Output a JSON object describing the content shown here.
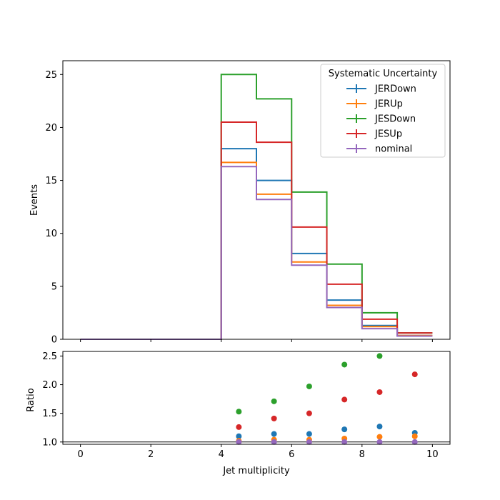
{
  "chart_data": {
    "type": "step-histogram-with-ratio",
    "xlabel": "Jet multiplicity",
    "ylabel_top": "Events",
    "ylabel_bottom": "Ratio",
    "legend_title": "Systematic Uncertainty",
    "legend_position": "top-right",
    "xlim": [
      -0.5,
      10.5
    ],
    "ylim_top": [
      0,
      26.3
    ],
    "ylim_bottom": [
      0.96,
      2.58
    ],
    "x_ticks": [
      0,
      2,
      4,
      6,
      8,
      10
    ],
    "y_ticks_top": [
      0,
      5,
      10,
      15,
      20,
      25
    ],
    "y_ticks_bottom": [
      1.0,
      1.5,
      2.0,
      2.5
    ],
    "reference_line": 1.0,
    "bin_edges": [
      0,
      1,
      2,
      3,
      4,
      5,
      6,
      7,
      8,
      9,
      10
    ],
    "series": [
      {
        "name": "JERDown",
        "color": "#1f77b4",
        "values": [
          0,
          0,
          0,
          0,
          18.0,
          15.0,
          8.1,
          3.7,
          1.3,
          0.35
        ]
      },
      {
        "name": "JERUp",
        "color": "#ff7f0e",
        "values": [
          0,
          0,
          0,
          0,
          16.7,
          13.7,
          7.3,
          3.2,
          1.2,
          0.35
        ]
      },
      {
        "name": "JESDown",
        "color": "#2ca02c",
        "values": [
          0,
          0,
          0,
          0,
          25.0,
          22.7,
          13.9,
          7.1,
          2.5,
          0.6
        ]
      },
      {
        "name": "JESUp",
        "color": "#d62728",
        "values": [
          0,
          0,
          0,
          0,
          20.5,
          18.6,
          10.6,
          5.2,
          1.9,
          0.6
        ]
      },
      {
        "name": "nominal",
        "color": "#9467bd",
        "values": [
          0,
          0,
          0,
          0,
          16.3,
          13.2,
          7.0,
          3.0,
          1.0,
          0.3
        ]
      }
    ],
    "ratio_x": [
      4.5,
      5.5,
      6.5,
      7.5,
      8.5,
      9.5
    ],
    "ratio_series": [
      {
        "name": "JERDown",
        "color": "#1f77b4",
        "values": [
          1.1,
          1.14,
          1.14,
          1.22,
          1.27,
          1.16
        ]
      },
      {
        "name": "JERUp",
        "color": "#ff7f0e",
        "values": [
          1.02,
          1.04,
          1.04,
          1.06,
          1.09,
          1.1
        ]
      },
      {
        "name": "JESDown",
        "color": "#2ca02c",
        "values": [
          1.53,
          1.71,
          1.97,
          2.35,
          2.5,
          null
        ]
      },
      {
        "name": "JESUp",
        "color": "#d62728",
        "values": [
          1.26,
          1.41,
          1.5,
          1.74,
          1.87,
          2.18
        ]
      },
      {
        "name": "nominal",
        "color": "#9467bd",
        "values": [
          1.0,
          1.0,
          1.0,
          1.0,
          1.0,
          1.0
        ]
      }
    ]
  }
}
